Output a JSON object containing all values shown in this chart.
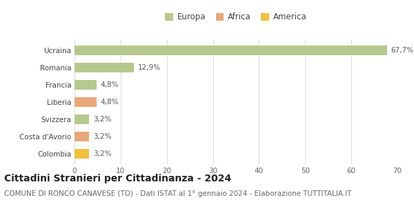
{
  "categories": [
    "Ucraina",
    "Romania",
    "Francia",
    "Liberia",
    "Svizzera",
    "Costa d'Avorio",
    "Colombia"
  ],
  "values": [
    67.7,
    12.9,
    4.8,
    4.8,
    3.2,
    3.2,
    3.2
  ],
  "labels": [
    "67,7%",
    "12,9%",
    "4,8%",
    "4,8%",
    "3,2%",
    "3,2%",
    "3,2%"
  ],
  "colors": [
    "#b5c98e",
    "#b5c98e",
    "#b5c98e",
    "#e8a87c",
    "#b5c98e",
    "#e8a87c",
    "#f0c040"
  ],
  "legend": [
    {
      "label": "Europa",
      "color": "#b5c98e"
    },
    {
      "label": "Africa",
      "color": "#e8a87c"
    },
    {
      "label": "America",
      "color": "#f0c040"
    }
  ],
  "xlim": [
    0,
    70
  ],
  "xticks": [
    0,
    10,
    20,
    30,
    40,
    50,
    60,
    70
  ],
  "title": "Cittadini Stranieri per Cittadinanza - 2024",
  "subtitle": "COMUNE DI RONCO CANAVESE (TO) - Dati ISTAT al 1° gennaio 2024 - Elaborazione TUTTITALIA.IT",
  "background_color": "#ffffff",
  "grid_color": "#dddddd",
  "bar_height": 0.55,
  "title_fontsize": 10,
  "subtitle_fontsize": 7.5,
  "label_fontsize": 7.5,
  "tick_fontsize": 7.5,
  "legend_fontsize": 8.5
}
